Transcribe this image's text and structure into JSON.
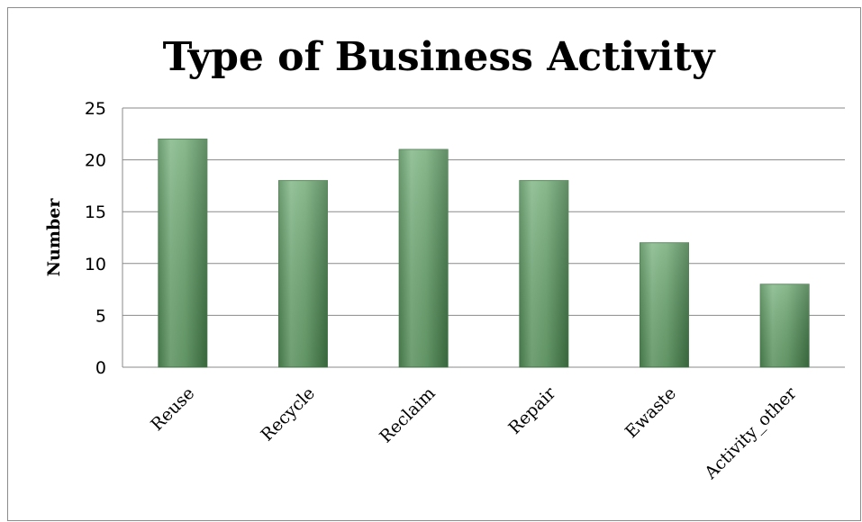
{
  "chart_data": {
    "type": "bar",
    "title": "Type of Business Activity",
    "xlabel": "",
    "ylabel": "Number",
    "categories": [
      "Reuse",
      "Recycle",
      "Reclaim",
      "Repair",
      "Ewaste",
      "Activity_other"
    ],
    "values": [
      22,
      18,
      21,
      18,
      12,
      8
    ],
    "ylim": [
      0,
      25
    ],
    "yticks": [
      "0",
      "5",
      "10",
      "15",
      "20",
      "25"
    ],
    "grid": true,
    "legend": "none",
    "bar_color": "#6aa66f"
  }
}
